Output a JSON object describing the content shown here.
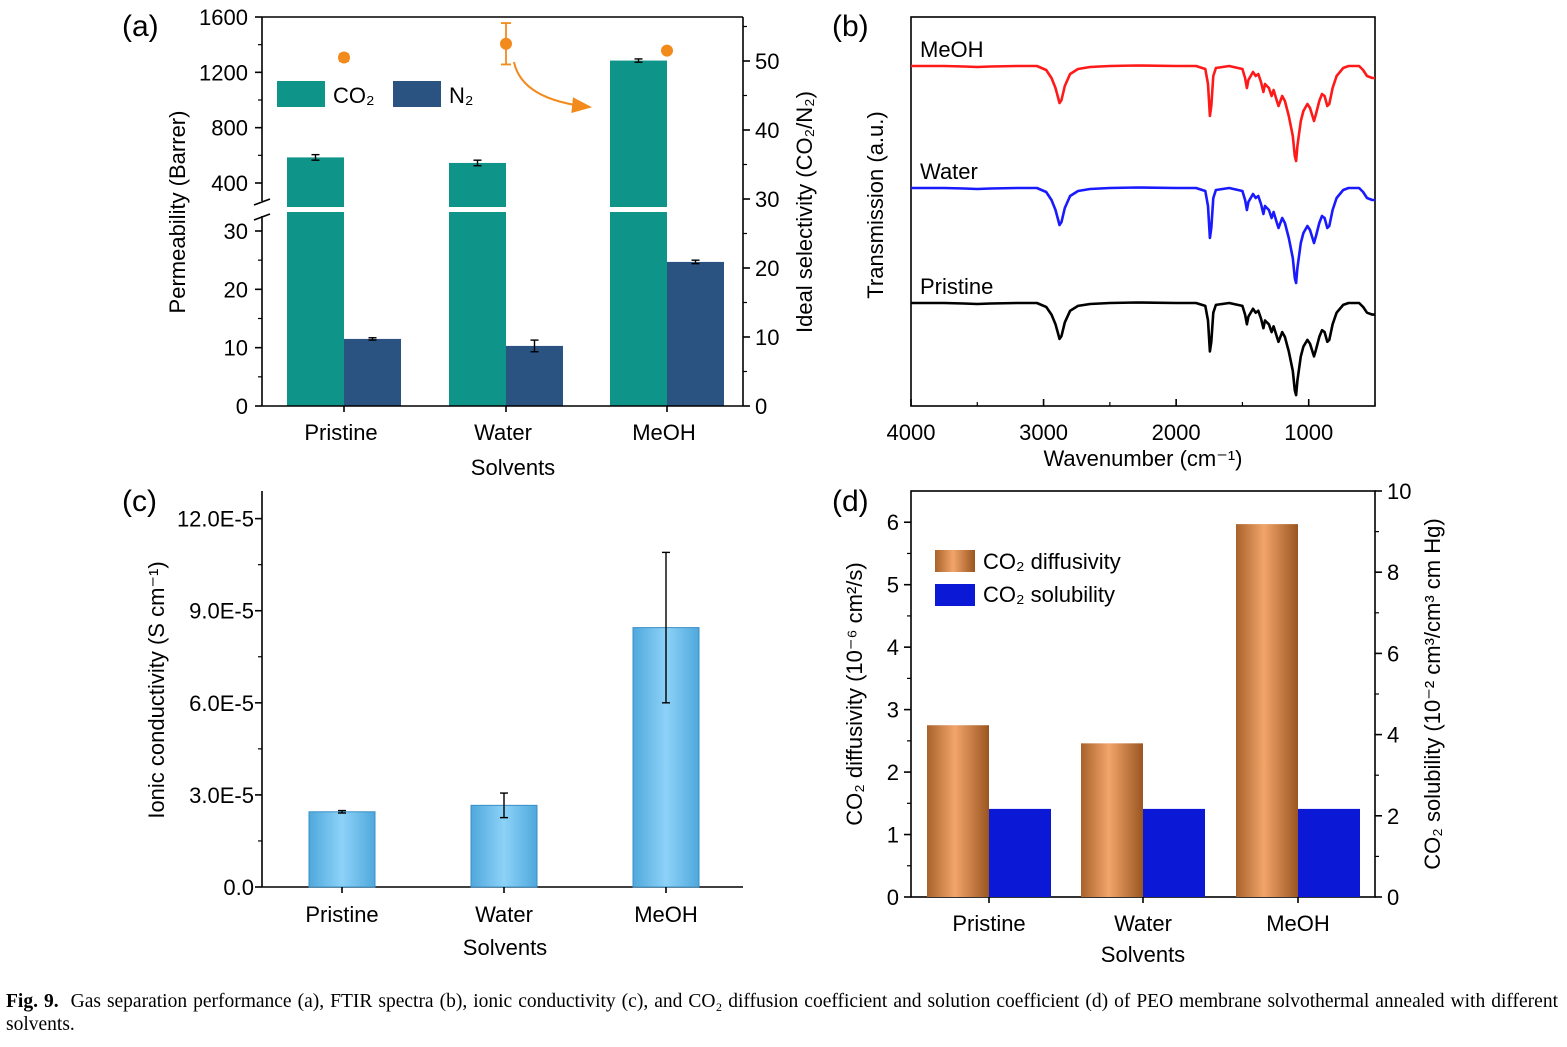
{
  "chart_data": [
    {
      "id": "a",
      "type": "bar",
      "panel_label": "(a)",
      "xlabel": "Solvents",
      "categories": [
        "Pristine",
        "Water",
        "MeOH"
      ],
      "ylabel": "Permeability (Barrer)",
      "y2label": "Ideal selectivity (CO₂/N₂)",
      "y_axis": {
        "broken": true,
        "lower_range": [
          0,
          35
        ],
        "upper_range": [
          200,
          1600
        ],
        "lower_ticks": [
          "0",
          "10",
          "20",
          "30"
        ],
        "upper_ticks": [
          "400",
          "800",
          "1200",
          "1600"
        ]
      },
      "y2lim": [
        0,
        56
      ],
      "y2_ticks": [
        "0",
        "10",
        "20",
        "30",
        "40",
        "50"
      ],
      "series": [
        {
          "name": "CO₂",
          "color": "#0e9489",
          "values": [
            585,
            545,
            1285
          ],
          "errors": [
            20,
            20,
            12
          ]
        },
        {
          "name": "N₂",
          "color": "#2b5382",
          "values": [
            11.5,
            10.3,
            24.7
          ],
          "errors": [
            0.2,
            1.0,
            0.3
          ]
        }
      ],
      "selectivity": {
        "color": "#f28a1c",
        "values": [
          50.5,
          52.5,
          51.5
        ],
        "errors": [
          0.5,
          3.0,
          0.3
        ]
      },
      "legend_position": "top-left",
      "annotation": "arrow from selectivity marker toward MeOH"
    },
    {
      "id": "b",
      "type": "line",
      "panel_label": "(b)",
      "xlabel": "Wavenumber (cm⁻¹)",
      "ylabel": "Transmission (a.u.)",
      "xlim": [
        4000,
        500
      ],
      "x_ticks": [
        "4000",
        "3000",
        "2000",
        "1000"
      ],
      "series": [
        {
          "name": "MeOH",
          "color": "#ff1a1a"
        },
        {
          "name": "Water",
          "color": "#1a1aff"
        },
        {
          "name": "Pristine",
          "color": "#000000"
        }
      ],
      "peaks_cm-1": [
        2880,
        1740,
        1466,
        1342,
        1280,
        1240,
        1100,
        960,
        840
      ]
    },
    {
      "id": "c",
      "type": "bar",
      "panel_label": "(c)",
      "xlabel": "Solvents",
      "ylabel": "Ionic conductivity (S cm⁻¹)",
      "categories": [
        "Pristine",
        "Water",
        "MeOH"
      ],
      "ylim": [
        0,
        0.000129
      ],
      "y_ticks": [
        "0.0",
        "3.0E-5",
        "6.0E-5",
        "9.0E-5",
        "12.0E-5"
      ],
      "series": [
        {
          "color": "#7ec8f4",
          "values": [
            2.45e-05,
            2.66e-05,
            8.45e-05
          ],
          "errors": [
            4e-07,
            4e-06,
            2.45e-05
          ]
        }
      ]
    },
    {
      "id": "d",
      "type": "bar",
      "panel_label": "(d)",
      "xlabel": "Solvents",
      "categories": [
        "Pristine",
        "Water",
        "MeOH"
      ],
      "ylabel": "CO₂ diffusivity (10⁻⁶ cm²/s)",
      "y2label": "CO₂ solubility (10⁻² cm³/cm³ cm Hg)",
      "ylim": [
        0,
        6.5
      ],
      "y_ticks": [
        "0",
        "1",
        "2",
        "3",
        "4",
        "5",
        "6"
      ],
      "y2lim": [
        0,
        10
      ],
      "y2_ticks": [
        "0",
        "2",
        "4",
        "6",
        "8",
        "10"
      ],
      "series": [
        {
          "name": "CO₂ diffusivity",
          "axis": "left",
          "color": "#e8955a",
          "values": [
            2.75,
            2.46,
            5.97
          ]
        },
        {
          "name": "CO₂ solubility",
          "axis": "right",
          "color": "#0b18d6",
          "values": [
            2.17,
            2.17,
            2.17
          ]
        }
      ],
      "legend_position": "top-left"
    }
  ],
  "caption": {
    "label": "Fig. 9.",
    "text": "Gas separation performance (a), FTIR spectra (b), ionic conductivity (c), and CO₂ diffusion coefficient and solution coefficient (d) of PEO membrane solvothermal annealed with different solvents."
  }
}
